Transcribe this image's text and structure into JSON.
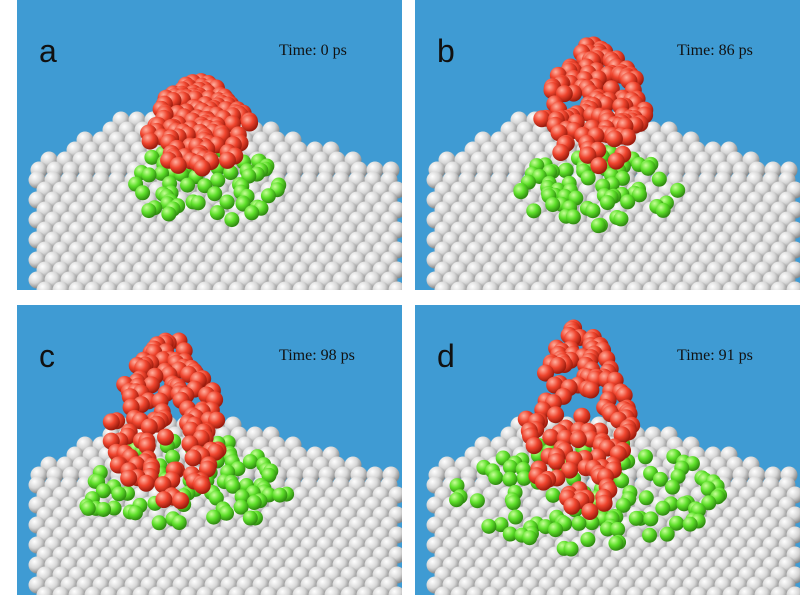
{
  "panels": [
    {
      "label": "a",
      "time": "Time: 0 ps"
    },
    {
      "label": "b",
      "time": "Time: 86 ps"
    },
    {
      "label": "c",
      "time": "Time: 98 ps"
    },
    {
      "label": "d",
      "time": "Time: 91 ps"
    }
  ]
}
